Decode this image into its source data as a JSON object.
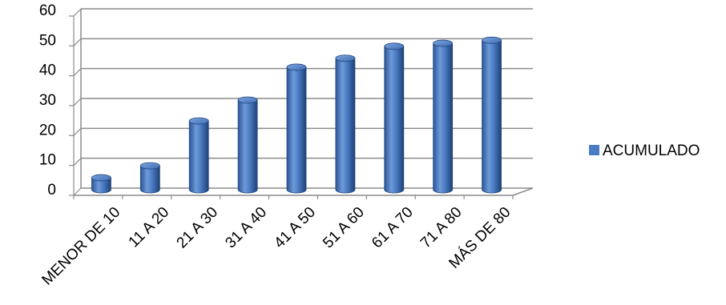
{
  "chart_data": {
    "type": "bar",
    "categories": [
      "MENOR DE 10",
      "11 A 20",
      "21 A 30",
      "31 A 40",
      "41 A 50",
      "51 A 60",
      "61 A 70",
      "71 A 80",
      "MÁS DE 80"
    ],
    "series": [
      {
        "name": "ACUMULADO",
        "values": [
          4,
          8,
          23,
          30,
          41,
          44,
          48,
          49,
          50
        ]
      }
    ],
    "ylim": [
      0,
      60
    ],
    "yticks": [
      0,
      10,
      20,
      30,
      40,
      50,
      60
    ],
    "grid": true,
    "legend": "right",
    "style": "3d-cylinder",
    "colors": {
      "bar": "#4a7cc4",
      "bar_dark": "#22467f",
      "bar_light": "#8fb2e6",
      "grid": "#8c8c8c",
      "legend_swatch": "#4a7cc4"
    }
  }
}
